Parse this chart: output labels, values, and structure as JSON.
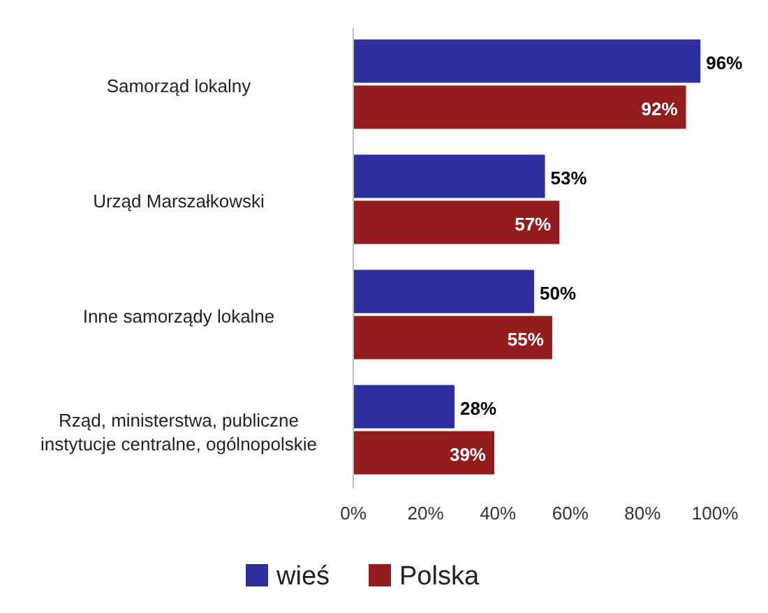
{
  "chart_data": {
    "type": "bar",
    "orientation": "horizontal",
    "categories": [
      "Samorząd lokalny",
      "Urząd Marszałkowski",
      "Inne samorządy lokalne",
      "Rząd, ministerstwa, publiczne instytucje centralne, ogólnopolskie"
    ],
    "series": [
      {
        "name": "wieś",
        "color": "#2e2e9e",
        "values": [
          96,
          53,
          50,
          28
        ]
      },
      {
        "name": "Polska",
        "color": "#931d1d",
        "values": [
          92,
          57,
          55,
          39
        ]
      }
    ],
    "xlim": [
      0,
      100
    ],
    "xticks": [
      {
        "value": 0,
        "label": "0%"
      },
      {
        "value": 20,
        "label": "20%"
      },
      {
        "value": 40,
        "label": "40%"
      },
      {
        "value": 60,
        "label": "60%"
      },
      {
        "value": 80,
        "label": "80%"
      },
      {
        "value": 100,
        "label": "100%"
      }
    ],
    "value_labels": [
      [
        "96%",
        "53%",
        "50%",
        "28%"
      ],
      [
        "92%",
        "57%",
        "55%",
        "39%"
      ]
    ],
    "legend": "bottom",
    "grid": false
  }
}
